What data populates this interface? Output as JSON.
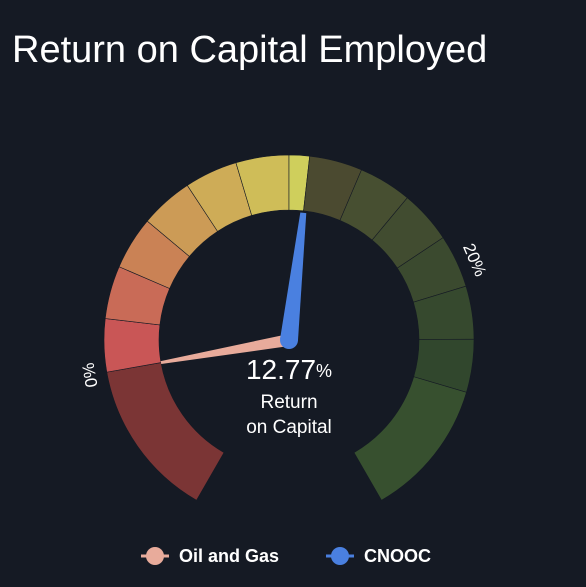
{
  "chart_data": {
    "type": "gauge",
    "title": "Return on Capital Employed",
    "xlim": [
      -6,
      30
    ],
    "xticks": [
      {
        "value": 0,
        "label": "0%"
      },
      {
        "value": 20,
        "label": "20%"
      }
    ],
    "bands": [
      {
        "from": -6,
        "to": 0,
        "color": "#7b3535"
      },
      {
        "from": 0,
        "to": 2,
        "color": "#c95656"
      },
      {
        "from": 2,
        "to": 4,
        "color": "#c96b57"
      },
      {
        "from": 4,
        "to": 6,
        "color": "#ca8255"
      },
      {
        "from": 6,
        "to": 8,
        "color": "#cc9b56"
      },
      {
        "from": 8,
        "to": 10,
        "color": "#ceac57"
      },
      {
        "from": 10,
        "to": 12,
        "color": "#cfbd58"
      },
      {
        "from": 12,
        "to": 12.77,
        "color": "#cfcf5c"
      },
      {
        "from": 12.77,
        "to": 14.77,
        "color": "#4b4a30"
      },
      {
        "from": 14.77,
        "to": 16.77,
        "color": "#474f31"
      },
      {
        "from": 16.77,
        "to": 18.77,
        "color": "#414c30"
      },
      {
        "from": 18.77,
        "to": 20.77,
        "color": "#3b4a2f"
      },
      {
        "from": 20.77,
        "to": 22.77,
        "color": "#36492e"
      },
      {
        "from": 22.77,
        "to": 24.77,
        "color": "#31472d"
      },
      {
        "from": 24.77,
        "to": 30,
        "color": "#37502f"
      }
    ],
    "series": [
      {
        "name": "Oil and Gas",
        "color": "#e8ab9b",
        "value": 0
      },
      {
        "name": "CNOOC",
        "color": "#4a80e0",
        "value": 12.77
      }
    ],
    "value_suffix": "%",
    "center_text": [
      "Return",
      "on Capital"
    ]
  }
}
